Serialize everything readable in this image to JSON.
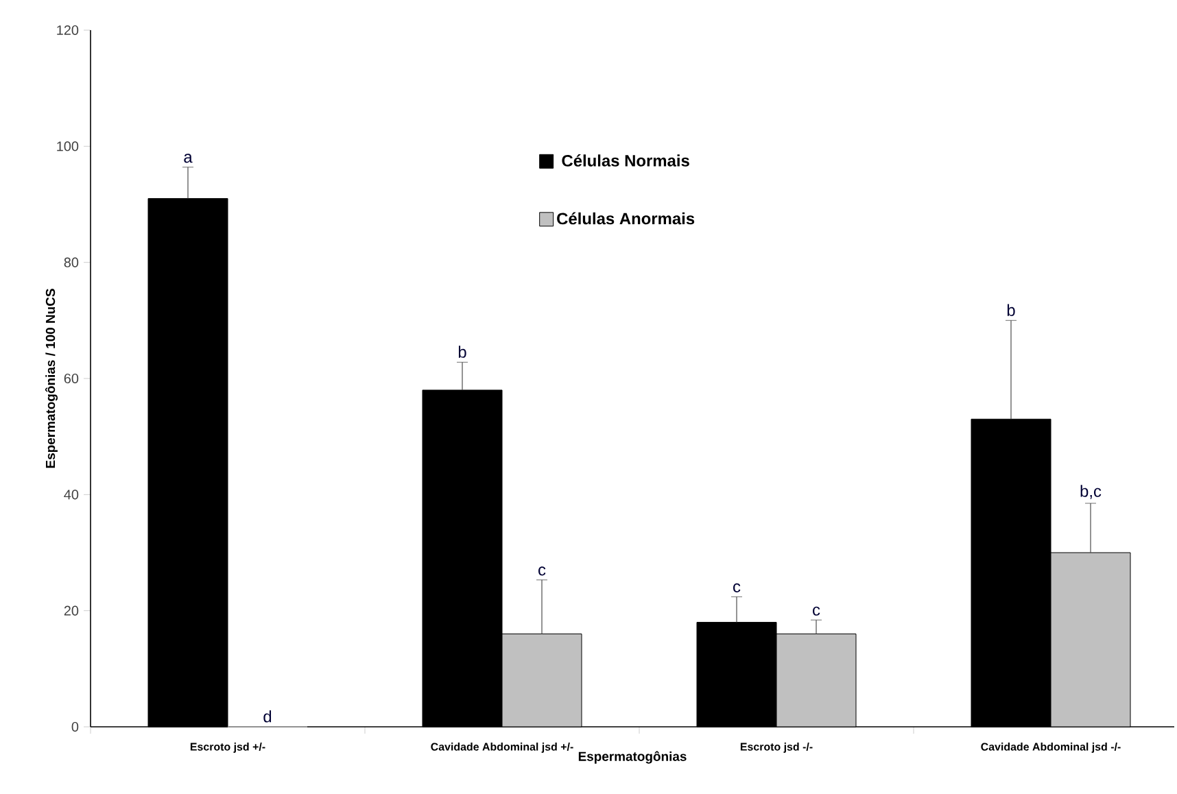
{
  "chart_data": {
    "type": "bar",
    "xlabel": "Espermatogônias",
    "ylabel": "Espermatogônias / 100 NuCS",
    "categories": [
      "Escroto jsd +/-",
      "Cavidade Abdominal jsd +/-",
      "Escroto jsd -/-",
      "Cavidade Abdominal jsd -/-"
    ],
    "series": [
      {
        "name": "Células Normais",
        "color": "#000000",
        "values": [
          91,
          58,
          18,
          53
        ],
        "errors": [
          5.4,
          4.8,
          4.4,
          17
        ]
      },
      {
        "name": "Células Anormais",
        "color": "#c0c0c0",
        "values": [
          0,
          16,
          16,
          30
        ],
        "errors": [
          null,
          9.3,
          2.4,
          8.5
        ]
      }
    ],
    "ylim": [
      0,
      120
    ],
    "yticks": [
      0,
      20,
      40,
      60,
      80,
      100,
      120
    ],
    "legend": "top",
    "grid": false,
    "annotations": [
      "a",
      "d",
      "b",
      "c",
      "c",
      "c",
      "b",
      "b,c"
    ]
  }
}
